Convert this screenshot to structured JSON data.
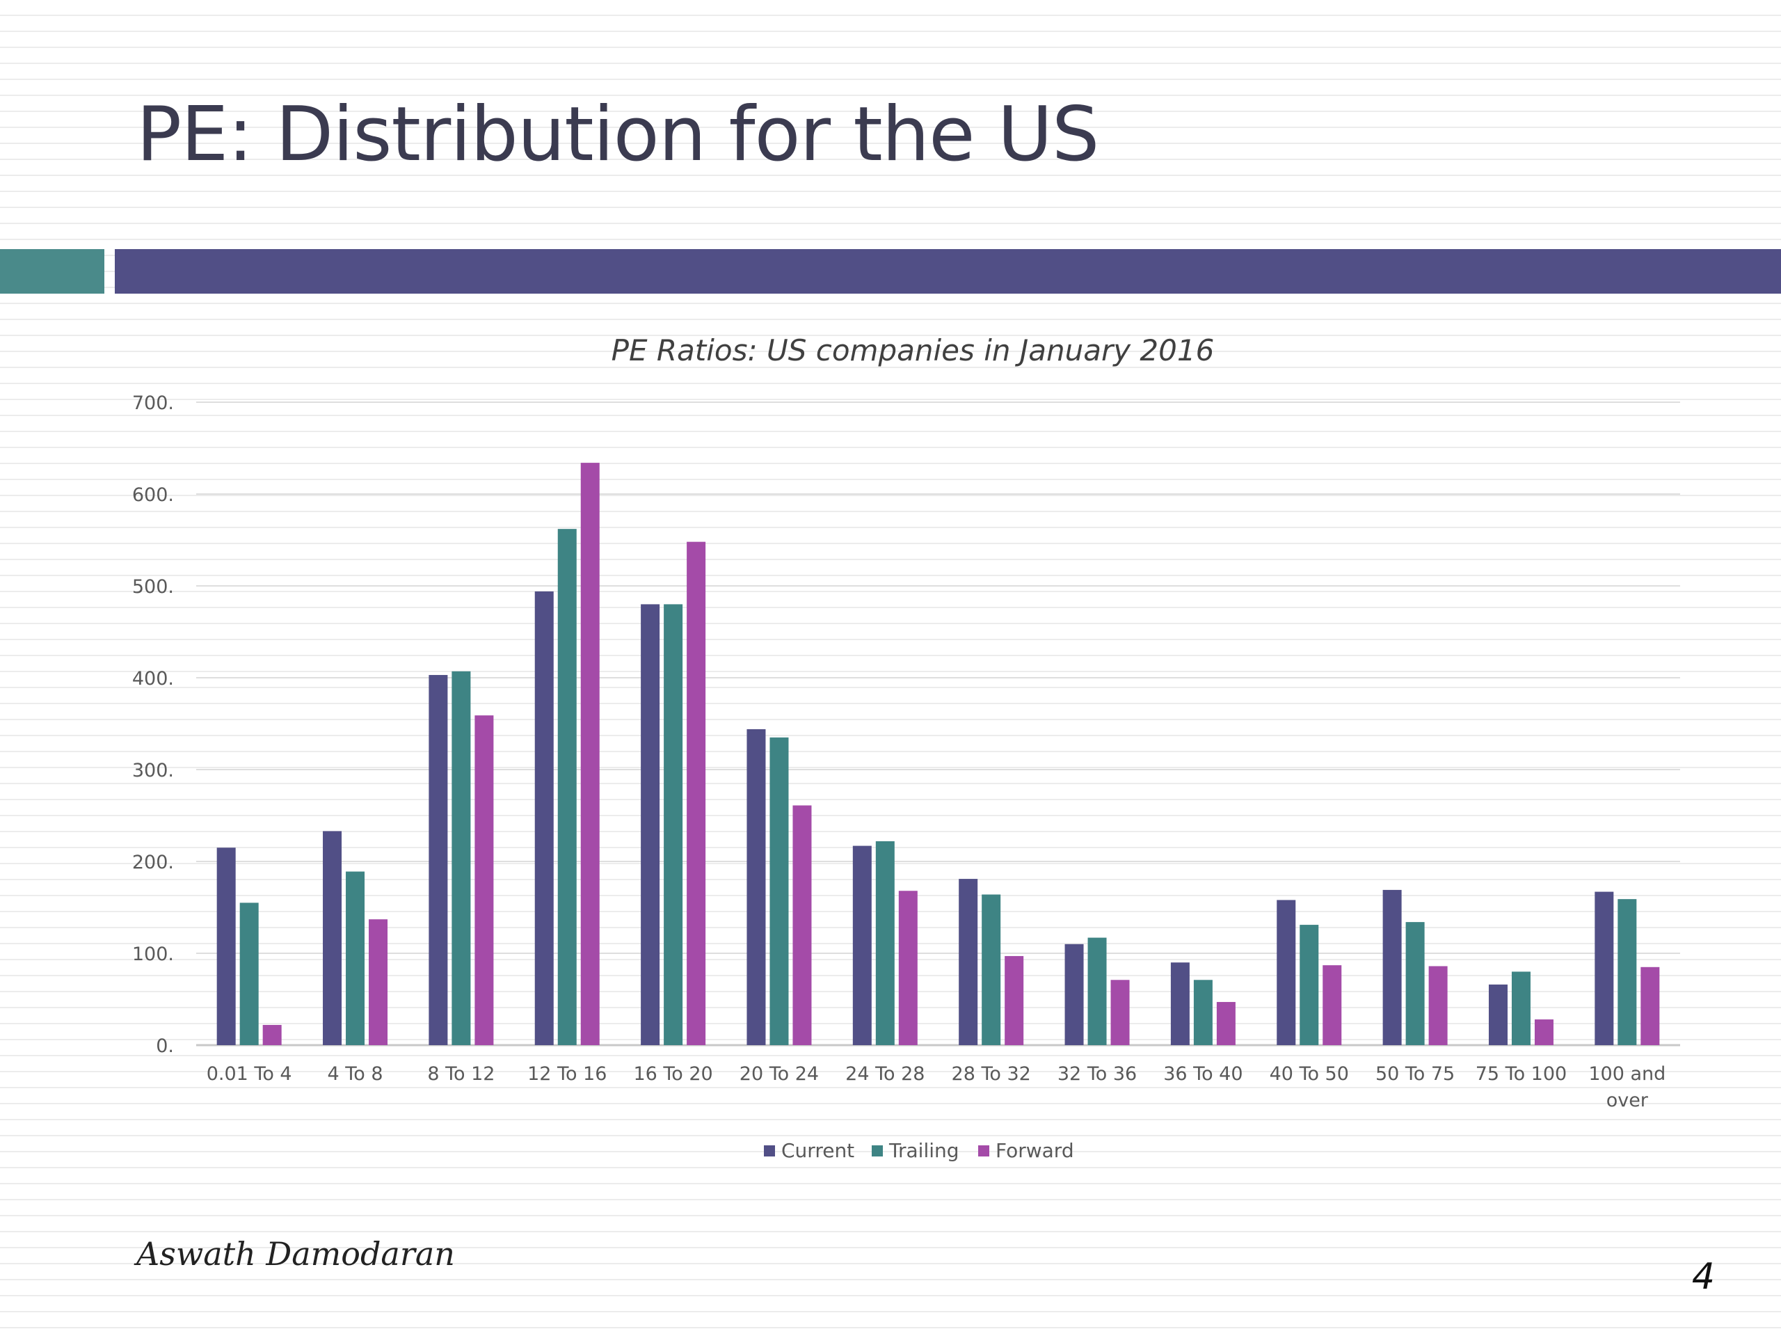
{
  "slide": {
    "title": "PE: Distribution for the US",
    "author": "Aswath Damodaran",
    "page_number": "4"
  },
  "colors": {
    "current": "#514f86",
    "trailing": "#3e8484",
    "forward": "#a44ba8",
    "accent_teal": "#4a8a8a",
    "accent_purple": "#514f86"
  },
  "chart_data": {
    "type": "bar",
    "title": "PE Ratios: US companies in January 2016",
    "xlabel": "",
    "ylabel": "",
    "ylim": [
      0,
      700
    ],
    "yticks": [
      0,
      100,
      200,
      300,
      400,
      500,
      600,
      700
    ],
    "ytick_labels": [
      "0.",
      "100.",
      "200.",
      "300.",
      "400.",
      "500.",
      "600.",
      "700."
    ],
    "grid": true,
    "legend_position": "bottom",
    "categories": [
      "0.01 To 4",
      "4 To 8",
      "8 To 12",
      "12 To 16",
      "16 To 20",
      "20 To 24",
      "24 To 28",
      "28 To 32",
      "32 To 36",
      "36 To 40",
      "40 To 50",
      "50 To 75",
      "75 To 100",
      "100 and over"
    ],
    "series": [
      {
        "name": "Current",
        "values": [
          215,
          233,
          403,
          494,
          480,
          344,
          217,
          181,
          110,
          90,
          158,
          169,
          66,
          167
        ]
      },
      {
        "name": "Trailing",
        "values": [
          155,
          189,
          407,
          562,
          480,
          335,
          222,
          164,
          117,
          71,
          131,
          134,
          80,
          159
        ]
      },
      {
        "name": "Forward",
        "values": [
          22,
          137,
          359,
          634,
          548,
          261,
          168,
          97,
          71,
          47,
          87,
          86,
          28,
          85
        ]
      }
    ]
  }
}
